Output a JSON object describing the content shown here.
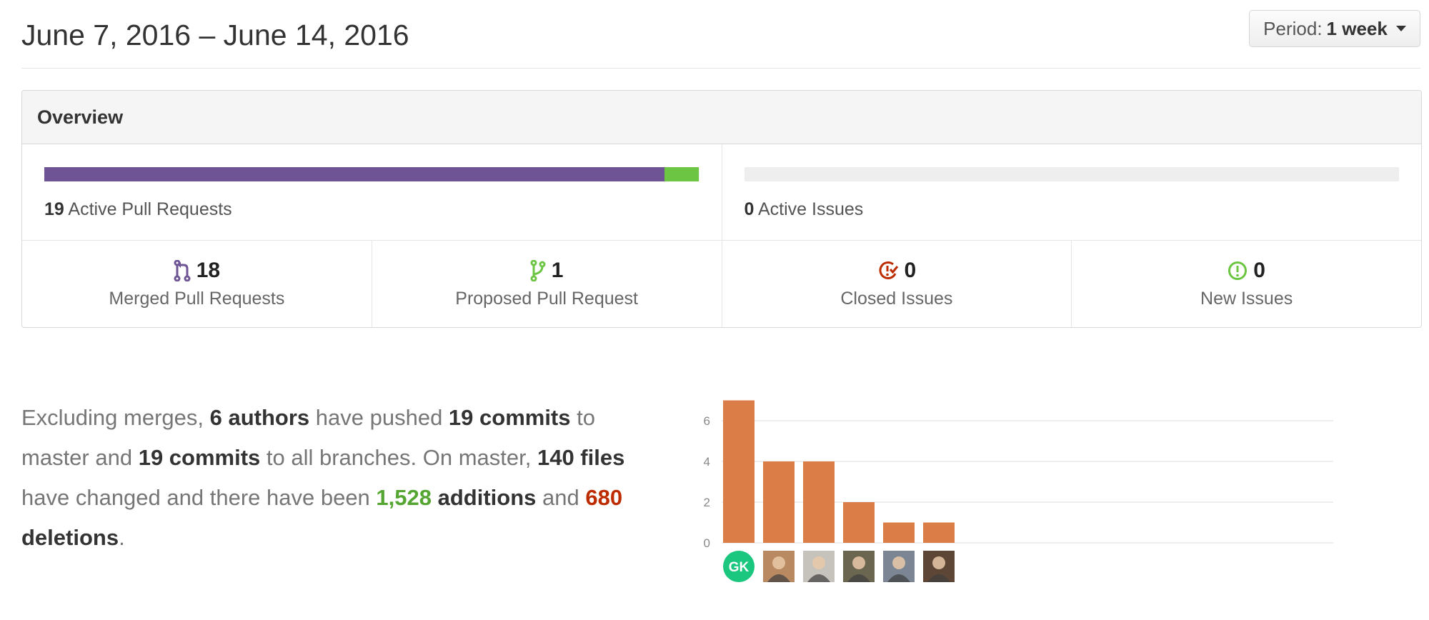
{
  "header": {
    "date_range": "June 7, 2016 – June 14, 2016",
    "period_label": "Period:",
    "period_value": "1 week"
  },
  "overview": {
    "title": "Overview",
    "pull_requests": {
      "count": "19",
      "label": "Active Pull Requests",
      "merged_fraction": 0.947,
      "proposed_fraction": 0.053
    },
    "issues": {
      "count": "0",
      "label": "Active Issues"
    },
    "stats": [
      {
        "count": "18",
        "label": "Merged Pull Requests",
        "icon": "merge-icon",
        "color": "#6e5494"
      },
      {
        "count": "1",
        "label": "Proposed Pull Request",
        "icon": "branch-icon",
        "color": "#6cc644"
      },
      {
        "count": "0",
        "label": "Closed Issues",
        "icon": "issue-closed-icon",
        "color": "#bd2c00"
      },
      {
        "count": "0",
        "label": "New Issues",
        "icon": "issue-opened-icon",
        "color": "#6cc644"
      }
    ]
  },
  "summary": {
    "t1": "Excluding merges, ",
    "authors": "6 authors",
    "t2": " have pushed ",
    "commits_master": "19 commits",
    "t3": " to master and ",
    "commits_all": "19 commits",
    "t4": " to all branches. On master, ",
    "files": "140 files",
    "t5": " have changed and there have been ",
    "additions_num": "1,528",
    "additions_word": " additions",
    "t6": " and ",
    "deletions_num": "680",
    "deletions_word": "deletions",
    "t7": "."
  },
  "chart_data": {
    "type": "bar",
    "categories": [
      "GK",
      "author-2",
      "author-3",
      "author-4",
      "author-5",
      "author-6"
    ],
    "values": [
      7,
      4,
      4,
      2,
      1,
      1
    ],
    "yticks": [
      0,
      2,
      4,
      6
    ],
    "ylim": [
      0,
      7
    ],
    "bar_color": "#db7d46",
    "grid": true,
    "avatars": [
      {
        "initials": "GK",
        "color": "#1bc67e"
      },
      {
        "initials": "",
        "color": "#b98962"
      },
      {
        "initials": "",
        "color": "#c6c3bd"
      },
      {
        "initials": "",
        "color": "#6b6650"
      },
      {
        "initials": "",
        "color": "#7b8594"
      },
      {
        "initials": "",
        "color": "#5e4637"
      }
    ]
  }
}
